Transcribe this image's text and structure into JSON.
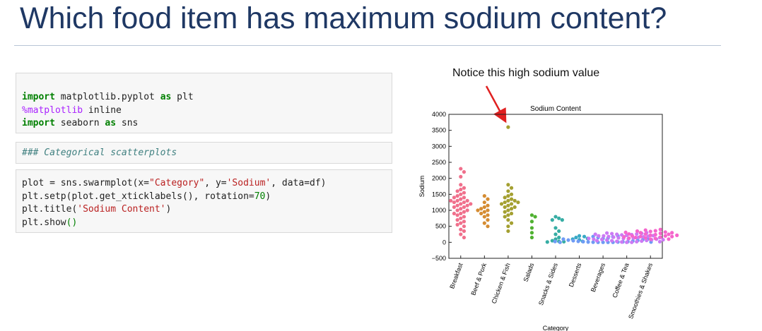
{
  "header": {
    "title": "Which food item has maximum sodium content?"
  },
  "code_cells": [
    [
      [
        "import",
        " matplotlib.pyplot ",
        "as",
        " plt"
      ],
      [
        "%matplotlib",
        " inline"
      ],
      [
        "import",
        " seaborn ",
        "as",
        " sns"
      ]
    ],
    [
      [
        "### Categorical scatterplots"
      ]
    ],
    [
      [
        "plot = sns.swarmplot(x=",
        "\"Category\"",
        ", y=",
        "'Sodium'",
        ", data=df)"
      ],
      [
        "plt.setp(plot.get_xticklabels(), rotation=",
        "70",
        ")"
      ],
      [
        "plt.title(",
        "'Sodium Content'",
        ")"
      ],
      [
        "plt.show",
        "()"
      ]
    ]
  ],
  "annotation": {
    "text": "Notice this high sodium value"
  },
  "chart_data": {
    "type": "swarm",
    "title": "Sodium Content",
    "x_label": "Category",
    "y_label": "Sodium",
    "categories": [
      "Breakfast",
      "Beef & Pork",
      "Chicken & Fish",
      "Salads",
      "Snacks & Sides",
      "Desserts",
      "Beverages",
      "Coffee & Tea",
      "Smoothies & Shakes"
    ],
    "colors": [
      "#f0708c",
      "#d58c32",
      "#a4a031",
      "#50b131",
      "#36ada4",
      "#38a9c5",
      "#6e9bf4",
      "#cc7af4",
      "#f565cc"
    ],
    "values": [
      [
        2300,
        2200,
        2050,
        1800,
        1700,
        1650,
        1600,
        1550,
        1500,
        1450,
        1400,
        1350,
        1300,
        1300,
        1250,
        1250,
        1200,
        1200,
        1150,
        1100,
        1100,
        1050,
        1000,
        1000,
        950,
        900,
        850,
        800,
        750,
        700,
        650,
        600,
        550,
        500,
        400,
        350,
        250,
        150,
        900,
        1300,
        1400,
        1150
      ],
      [
        1450,
        1350,
        1250,
        1150,
        1100,
        1050,
        1000,
        1000,
        950,
        900,
        850,
        800,
        700,
        600,
        500
      ],
      [
        3600,
        1800,
        1700,
        1600,
        1500,
        1450,
        1400,
        1350,
        1300,
        1250,
        1200,
        1200,
        1150,
        1100,
        1050,
        1000,
        950,
        900,
        850,
        800,
        700,
        600,
        500,
        350,
        1300,
        1250,
        1100
      ],
      [
        850,
        800,
        650,
        450,
        300,
        150
      ],
      [
        800,
        750,
        700,
        700,
        450,
        350,
        250,
        150,
        100,
        50,
        30,
        20,
        10
      ],
      [
        200,
        180,
        150,
        120,
        100,
        80,
        30
      ],
      [
        0,
        0,
        0,
        0,
        5,
        10,
        10,
        15,
        20,
        20,
        30,
        40,
        50,
        60,
        70,
        80,
        100,
        100,
        120,
        130,
        150,
        170,
        180,
        200,
        0,
        10,
        25
      ],
      [
        0,
        0,
        10,
        20,
        30,
        40,
        50,
        60,
        70,
        80,
        90,
        100,
        110,
        120,
        130,
        140,
        150,
        160,
        170,
        180,
        190,
        200,
        210,
        220,
        230,
        240,
        250,
        260,
        270,
        280,
        290,
        300,
        50,
        100,
        150,
        200,
        250,
        20,
        80,
        120
      ],
      [
        100,
        120,
        140,
        160,
        180,
        200,
        220,
        240,
        260,
        280,
        300,
        320,
        340,
        360,
        380,
        400,
        150,
        250,
        350,
        200,
        300,
        100,
        180,
        260,
        130,
        220,
        310,
        170
      ]
    ],
    "ylim": [
      -500,
      4000
    ],
    "yticks": [
      {
        "value": -500,
        "label": "−500"
      },
      0,
      500,
      1000,
      1500,
      2000,
      2500,
      3000,
      3500,
      4000
    ]
  }
}
